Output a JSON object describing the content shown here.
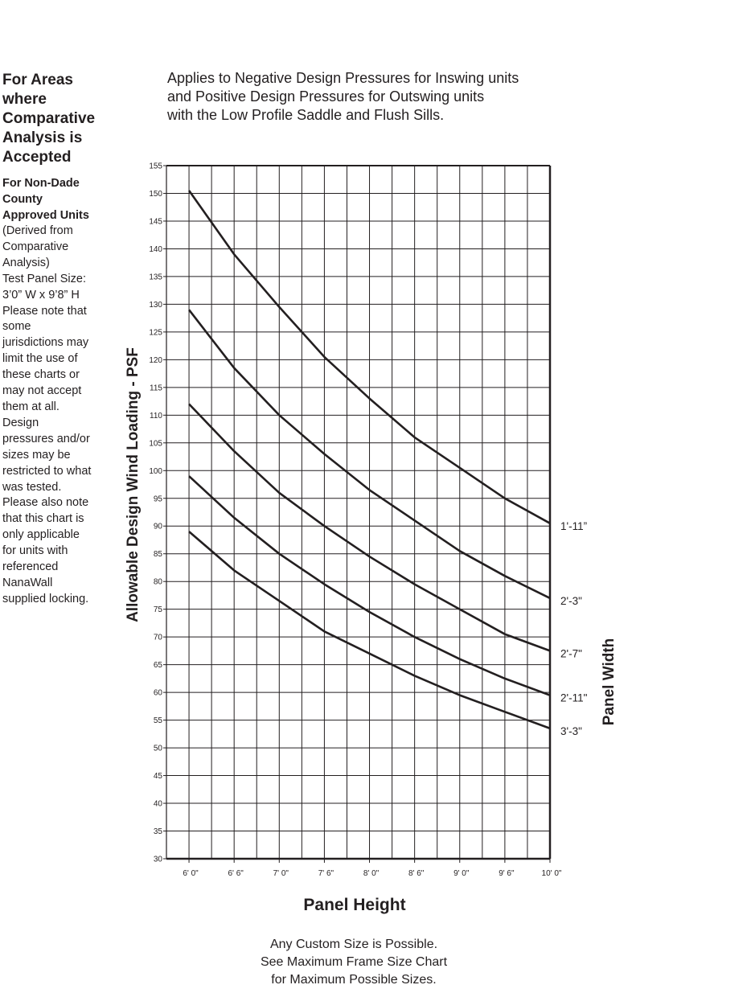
{
  "sidebar": {
    "heading_lines": [
      "For Areas",
      "where",
      "Comparative",
      "Analysis is",
      "Accepted"
    ],
    "subheading_lines": [
      "For Non-Dade",
      "County",
      "Approved Units"
    ],
    "note_lines": [
      "(Derived from",
      "Comparative",
      "Analysis)",
      "Test Panel Size:",
      "3’0” W x 9’8” H",
      "Please note that",
      "some",
      "jurisdictions may",
      "limit the use of",
      "these charts or",
      "may not accept",
      "them at all.",
      "Design",
      "pressures and/or",
      "sizes may be",
      "restricted to what",
      "was tested.",
      "Please also note",
      "that this chart is",
      "only applicable",
      "for units with",
      "referenced",
      "NanaWall",
      "supplied locking."
    ]
  },
  "header": {
    "lines": [
      "Applies to Negative Design Pressures for Inswing units",
      "and Positive Design Pressures for Outswing units",
      "with the Low Profile Saddle and Flush Sills."
    ]
  },
  "footer": {
    "lines": [
      "Any Custom Size is Possible.",
      "See Maximum Frame Size Chart",
      "for Maximum Possible Sizes."
    ]
  },
  "chart_data": {
    "type": "line",
    "xlabel": "Panel Height",
    "ylabel": "Allowable Design Wind  Loading - PSF",
    "legend_title": "Panel Width",
    "legend_placement": "right, labels at line ends",
    "grid": true,
    "x": [
      6.0,
      6.5,
      7.0,
      7.5,
      8.0,
      8.5,
      9.0,
      9.5,
      10.0
    ],
    "x_tick_labels": [
      "6' 0\"",
      "6' 6\"",
      "7' 0\"",
      "7' 6\"",
      "8' 0\"",
      "8' 6\"",
      "9' 0\"",
      "9' 6\"",
      "10' 0\""
    ],
    "xlim": [
      5.75,
      10.0
    ],
    "ylim": [
      30,
      155
    ],
    "y_ticks": [
      30,
      35,
      40,
      45,
      50,
      55,
      60,
      65,
      70,
      75,
      80,
      85,
      90,
      95,
      100,
      105,
      110,
      115,
      120,
      125,
      130,
      135,
      140,
      145,
      150,
      155
    ],
    "series": [
      {
        "name": "1'-11”",
        "values": [
          150.5,
          139.0,
          129.5,
          120.5,
          113.0,
          106.0,
          100.5,
          95.0,
          90.5
        ]
      },
      {
        "name": "2'-3\"",
        "values": [
          129.0,
          118.5,
          110.0,
          103.0,
          96.5,
          91.0,
          85.5,
          81.0,
          77.0
        ]
      },
      {
        "name": "2'-7\"",
        "values": [
          112.0,
          103.5,
          96.0,
          90.0,
          84.5,
          79.5,
          75.0,
          70.5,
          67.5
        ]
      },
      {
        "name": "2'-11\"",
        "values": [
          99.0,
          91.5,
          85.0,
          79.5,
          74.5,
          70.0,
          66.0,
          62.5,
          59.5
        ]
      },
      {
        "name": "3'-3\"",
        "values": [
          89.0,
          82.0,
          76.5,
          71.0,
          67.0,
          63.0,
          59.5,
          56.5,
          53.5
        ]
      }
    ]
  }
}
